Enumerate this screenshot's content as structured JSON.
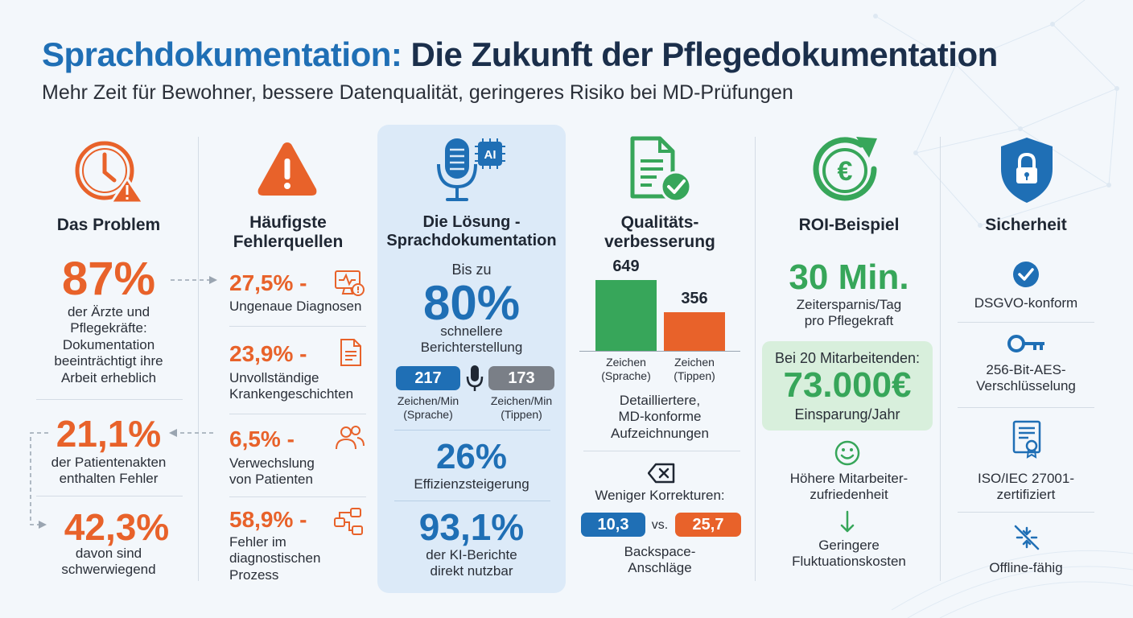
{
  "header": {
    "title_part1": "Sprachdokumentation:",
    "title_part2": "Die Zukunft der Pflegedokumentation",
    "subtitle": "Mehr Zeit für Bewohner, bessere Datenqualität, geringeres Risiko bei MD-Prüfungen"
  },
  "problem": {
    "heading": "Das Problem",
    "stat1_value": "87%",
    "stat1_text_lines": [
      "der Ärzte und",
      "Pflegekräfte:",
      "Dokumentation",
      "beeinträchtigt ihre",
      "Arbeit erheblich"
    ],
    "stat2_value": "21,1%",
    "stat2_text_lines": [
      "der Patientenakten",
      "enthalten Fehler"
    ],
    "stat3_value": "42,3%",
    "stat3_text_lines": [
      "davon sind",
      "schwerwiegend"
    ]
  },
  "errors": {
    "heading_lines": [
      "Häufigste",
      "Fehlerquellen"
    ],
    "items": [
      {
        "pct": "27,5% -",
        "lines": [
          "Ungenaue Diagnosen"
        ],
        "icon": "monitor-alert-icon"
      },
      {
        "pct": "23,9% -",
        "lines": [
          "Unvollständige",
          "Krankengeschichten"
        ],
        "icon": "document-icon"
      },
      {
        "pct": "6,5% -",
        "lines": [
          "Verwechslung",
          "von Patienten"
        ],
        "icon": "users-icon"
      },
      {
        "pct": "58,9% -",
        "lines": [
          "Fehler im",
          "diagnostischen",
          "Prozess"
        ],
        "icon": "flowchart-icon"
      }
    ]
  },
  "solution": {
    "icon_label": "AI",
    "heading_lines": [
      "Die Lösung -",
      "Sprachdokumentation"
    ],
    "pre": "Bis zu",
    "big": "80%",
    "big_text_lines": [
      "schnellere",
      "Berichterstellung"
    ],
    "speech_value": "217",
    "typing_value": "173",
    "speech_label_lines": [
      "Zeichen/Min",
      "(Sprache)"
    ],
    "typing_label_lines": [
      "Zeichen/Min",
      "(Tippen)"
    ],
    "eff_value": "26%",
    "eff_text": "Effizienzsteigerung",
    "ki_value": "93,1%",
    "ki_text_lines": [
      "der KI-Berichte",
      "direkt nutzbar"
    ]
  },
  "quality": {
    "heading_lines": [
      "Qualitäts-",
      "verbesserung"
    ],
    "chart_data": {
      "type": "bar",
      "categories": [
        "Zeichen (Sprache)",
        "Zeichen (Tippen)"
      ],
      "values": [
        649,
        356
      ],
      "colors": [
        "#37a65a",
        "#e8622a"
      ]
    },
    "bar1_value": "649",
    "bar2_value": "356",
    "bar1_label_lines": [
      "Zeichen",
      "(Sprache)"
    ],
    "bar2_label_lines": [
      "Zeichen",
      "(Tippen)"
    ],
    "desc_lines": [
      "Detailliertere,",
      "MD-konforme",
      "Aufzeichnungen"
    ],
    "corr_text": "Weniger Korrekturen:",
    "corr_v1": "10,3",
    "corr_vs": "vs.",
    "corr_v2": "25,7",
    "corr_label_lines": [
      "Backspace-",
      "Anschläge"
    ]
  },
  "roi": {
    "heading": "ROI-Beispiel",
    "big": "30 Min.",
    "big_text_lines": [
      "Zeitersparnis/Tag",
      "pro Pflegekraft"
    ],
    "box_pre": "Bei 20 Mitarbeitenden:",
    "box_value": "73.000€",
    "box_text": "Einsparung/Jahr",
    "sat_lines": [
      "Höhere Mitarbeiter-",
      "zufriedenheit"
    ],
    "fluct_lines": [
      "Geringere",
      "Fluktuationskosten"
    ]
  },
  "security": {
    "heading": "Sicherheit",
    "items": [
      {
        "lines": [
          "DSGVO-konform"
        ],
        "icon": "check-circle-icon"
      },
      {
        "lines": [
          "256-Bit-AES-",
          "Verschlüsselung"
        ],
        "icon": "key-icon"
      },
      {
        "lines": [
          "ISO/IEC 27001-",
          "zertifiziert"
        ],
        "icon": "certificate-icon"
      },
      {
        "lines": [
          "Offline-fähig"
        ],
        "icon": "offline-icon"
      }
    ]
  },
  "colors": {
    "blue": "#1f6fb5",
    "orange": "#e8622a",
    "green": "#37a65a",
    "grey": "#6b7280"
  }
}
